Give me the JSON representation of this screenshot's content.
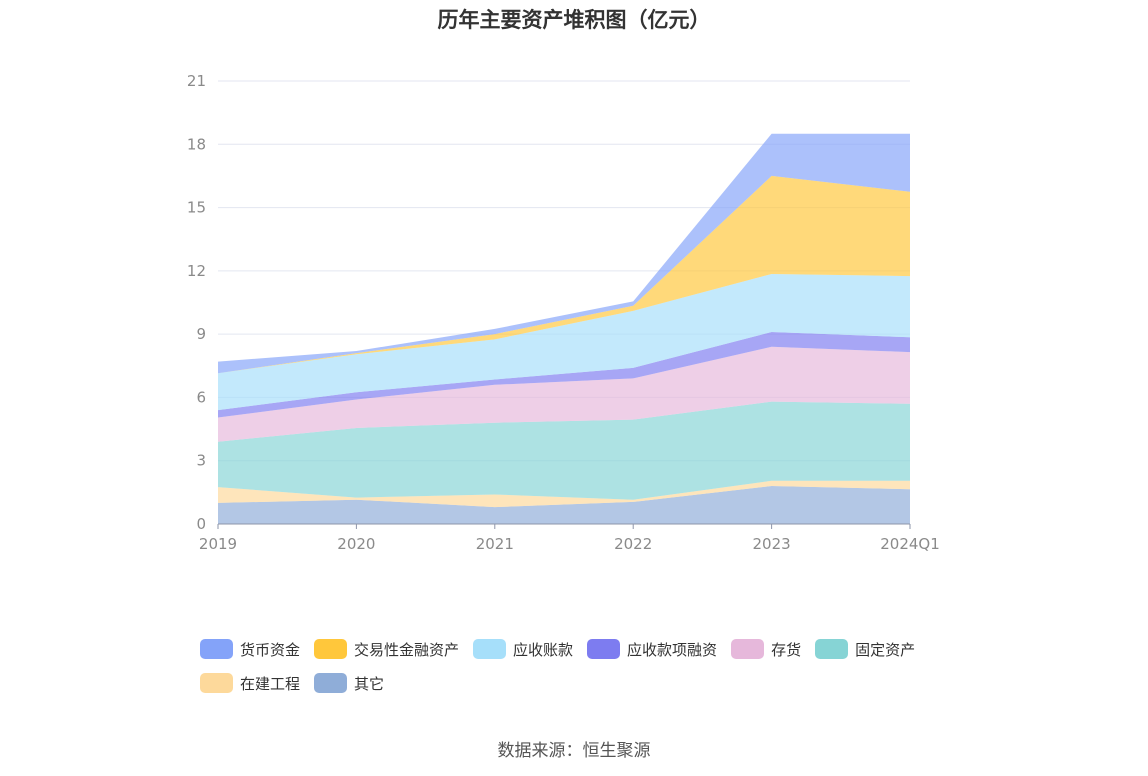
{
  "title": "历年主要资产堆积图（亿元）",
  "source": "数据来源：恒生聚源",
  "chart_data": {
    "type": "area",
    "stacked": true,
    "title": "历年主要资产堆积图（亿元）",
    "x": [
      "2019",
      "2020",
      "2021",
      "2022",
      "2023",
      "2024Q1"
    ],
    "ylim": [
      0,
      21
    ],
    "yticks": [
      0,
      3,
      6,
      9,
      12,
      15,
      18,
      21
    ],
    "grid": true,
    "legend_position": "bottom",
    "series": [
      {
        "name": "其它",
        "color": "#8fadd8",
        "values": [
          1.0,
          1.15,
          0.8,
          1.05,
          1.8,
          1.65
        ]
      },
      {
        "name": "在建工程",
        "color": "#fdd99b",
        "values": [
          0.75,
          0.1,
          0.6,
          0.1,
          0.25,
          0.4
        ]
      },
      {
        "name": "固定资产",
        "color": "#86d4d5",
        "values": [
          2.15,
          3.3,
          3.4,
          3.8,
          3.75,
          3.65
        ]
      },
      {
        "name": "存货",
        "color": "#e6b8db",
        "values": [
          1.15,
          1.35,
          1.8,
          1.95,
          2.6,
          2.45
        ]
      },
      {
        "name": "应收款项融资",
        "color": "#7d7cf0",
        "values": [
          0.35,
          0.35,
          0.25,
          0.5,
          0.7,
          0.7
        ]
      },
      {
        "name": "应收账款",
        "color": "#a6dffa",
        "values": [
          1.75,
          1.8,
          1.9,
          2.7,
          2.75,
          2.9
        ]
      },
      {
        "name": "交易性金融资产",
        "color": "#ffc73b",
        "values": [
          0.0,
          0.05,
          0.25,
          0.25,
          4.65,
          4.0
        ]
      },
      {
        "name": "货币资金",
        "color": "#84a3f9",
        "values": [
          0.55,
          0.1,
          0.25,
          0.2,
          2.0,
          2.75
        ]
      }
    ],
    "legend_order": [
      "货币资金",
      "交易性金融资产",
      "应收账款",
      "应收款项融资",
      "存货",
      "固定资产",
      "在建工程",
      "其它"
    ]
  }
}
